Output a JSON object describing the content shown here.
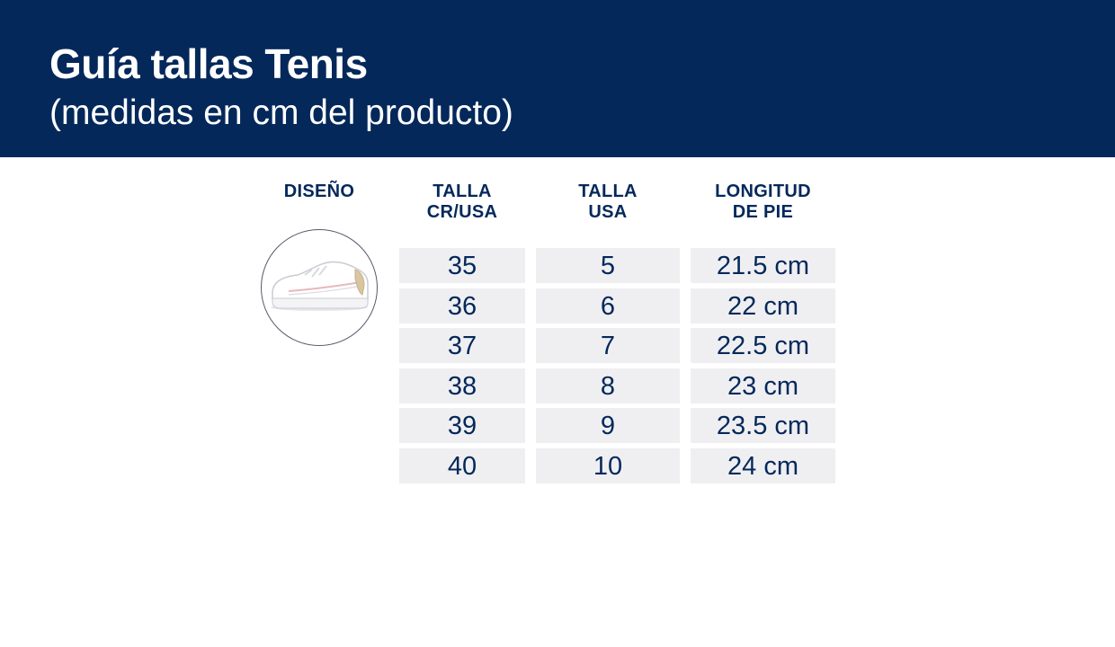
{
  "header": {
    "title": "Guía tallas Tenis",
    "subtitle": "(medidas en cm del producto)"
  },
  "table": {
    "columns": [
      {
        "line1": "DISEÑO",
        "line2": ""
      },
      {
        "line1": "TALLA",
        "line2": "CR/USA"
      },
      {
        "line1": "TALLA",
        "line2": "USA"
      },
      {
        "line1": "LONGITUD",
        "line2": "DE PIE"
      }
    ],
    "rows": [
      {
        "cr_usa": "35",
        "usa": "5",
        "length": "21.5 cm"
      },
      {
        "cr_usa": "36",
        "usa": "6",
        "length": "22 cm"
      },
      {
        "cr_usa": "37",
        "usa": "7",
        "length": "22.5 cm"
      },
      {
        "cr_usa": "38",
        "usa": "8",
        "length": "23 cm"
      },
      {
        "cr_usa": "39",
        "usa": "9",
        "length": "23.5 cm"
      },
      {
        "cr_usa": "40",
        "usa": "10",
        "length": "24 cm"
      }
    ]
  },
  "design_image": {
    "icon": "white-sneaker-icon"
  },
  "colors": {
    "brand_navy": "#04285a",
    "cell_bg": "#efeff2",
    "text_white": "#ffffff"
  }
}
